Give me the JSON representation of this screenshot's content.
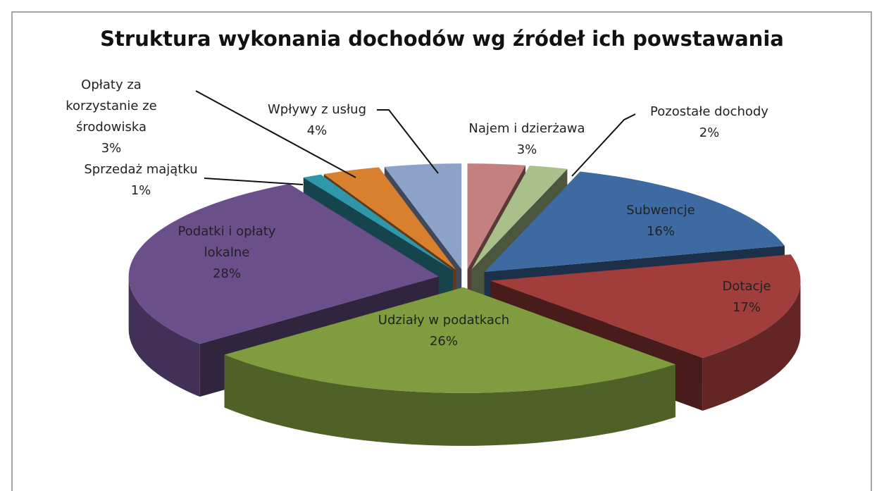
{
  "chart_data": {
    "type": "pie3d",
    "title": "Struktura wykonania dochodów wg źródeł ich powstawania",
    "categories": [
      "Najem i dzierżawa",
      "Pozostałe dochody",
      "Subwencje",
      "Dotacje",
      "Udziały w podatkach",
      "Podatki i opłaty lokalne",
      "Sprzedaż majątku",
      "Opłaty za korzystanie ze środowiska",
      "Wpływy z usług"
    ],
    "values": [
      3,
      2,
      16,
      17,
      26,
      28,
      1,
      3,
      4
    ],
    "value_labels": [
      "3%",
      "2%",
      "16%",
      "17%",
      "26%",
      "28%",
      "1%",
      "3%",
      "4%"
    ],
    "colors": [
      "#c4807f",
      "#a9c08a",
      "#3e6aa2",
      "#a13e3c",
      "#7f9c3f",
      "#6a4f8a",
      "#2f97aa",
      "#d9802f",
      "#8da2c9"
    ]
  }
}
